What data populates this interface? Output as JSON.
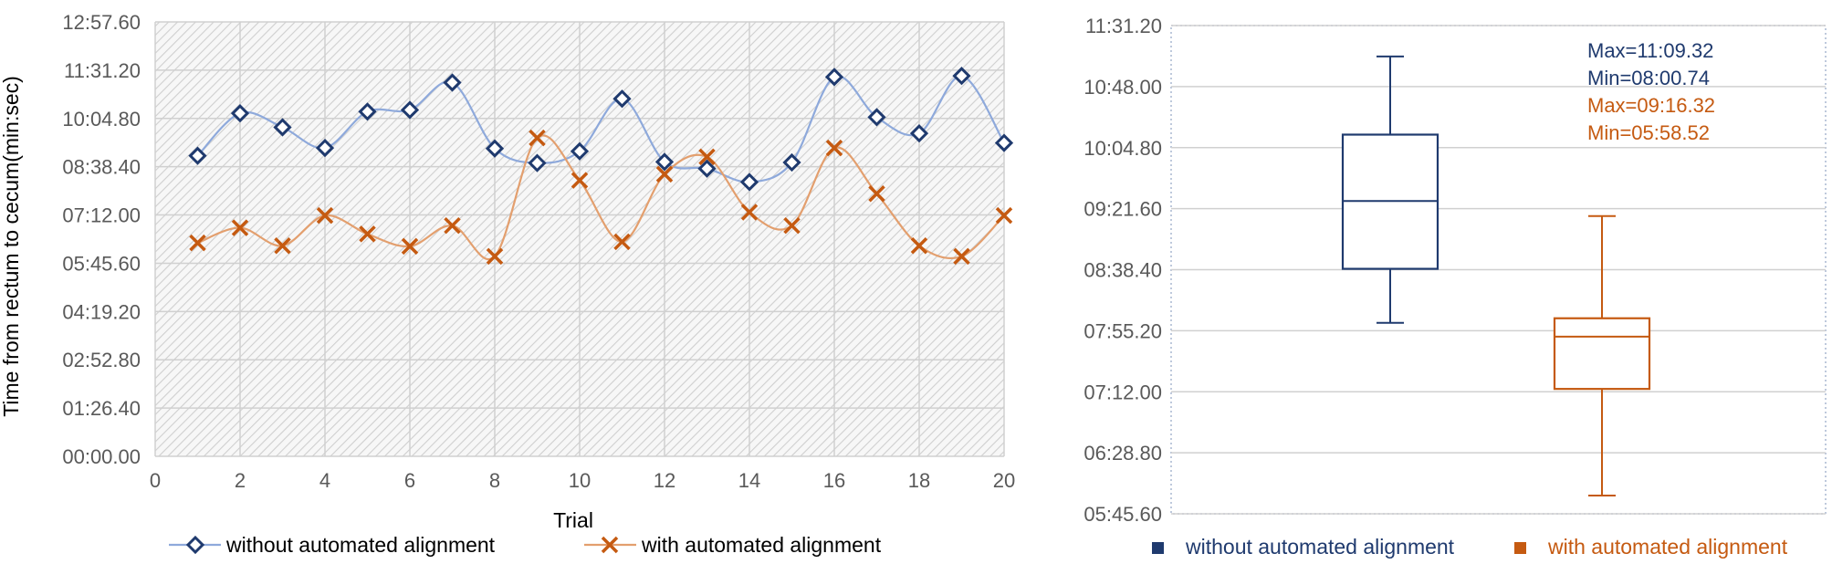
{
  "colors": {
    "without": "#1F3A6E",
    "without_line": "#8EA9DB",
    "with": "#C55A11",
    "with_line": "#E39F6E",
    "axis_text": "#595959",
    "grid": "#D0D0D0"
  },
  "chart_data": [
    {
      "type": "line",
      "xlabel": "Trial",
      "ylabel": "Time from rectum to cecum(min:sec)",
      "xlim": [
        0,
        20
      ],
      "x_ticks": [
        "0",
        "2",
        "4",
        "6",
        "8",
        "10",
        "12",
        "14",
        "16",
        "18",
        "20"
      ],
      "ylim_seconds": [
        0,
        777.6
      ],
      "y_ticks": [
        "00:00.00",
        "01:26.40",
        "02:52.80",
        "04:19.20",
        "05:45.60",
        "07:12.00",
        "08:38.40",
        "10:04.80",
        "11:31.20",
        "12:57.60"
      ],
      "legend_position": "bottom",
      "x": [
        1,
        2,
        3,
        4,
        5,
        6,
        7,
        8,
        9,
        10,
        11,
        12,
        13,
        14,
        15,
        16,
        17,
        18,
        19,
        20
      ],
      "series": [
        {
          "name": "without automated alignment",
          "marker": "diamond",
          "smooth": true,
          "values_seconds": [
            538,
            614,
            589,
            552,
            617,
            620,
            669,
            551,
            525,
            546,
            640,
            527,
            515,
            491,
            526,
            679,
            607,
            578,
            681,
            561
          ]
        },
        {
          "name": "with automated alignment",
          "marker": "x",
          "smooth": true,
          "values_seconds": [
            382,
            409,
            377,
            431,
            398,
            376,
            413,
            358,
            570,
            494,
            384,
            505,
            536,
            437,
            413,
            552,
            470,
            377,
            358,
            431
          ]
        }
      ]
    },
    {
      "type": "box",
      "ylim_seconds": [
        345.6,
        691.2
      ],
      "y_ticks": [
        "05:45.60",
        "06:28.80",
        "07:12.00",
        "07:55.20",
        "08:38.40",
        "09:21.60",
        "10:04.80",
        "10:48.00",
        "11:31.20"
      ],
      "legend_position": "bottom",
      "series": [
        {
          "name": "without automated alignment",
          "min": 480.74,
          "q1": 519,
          "median": 567,
          "q3": 614,
          "max": 669.32
        },
        {
          "name": "with automated alignment",
          "min": 358.52,
          "q1": 434,
          "median": 471,
          "q3": 484,
          "max": 556.32
        }
      ],
      "annotations": [
        {
          "text": "Max=11:09.32",
          "series": 0
        },
        {
          "text": "Min=08:00.74",
          "series": 0
        },
        {
          "text": "Max=09:16.32",
          "series": 1
        },
        {
          "text": "Min=05:58.52",
          "series": 1
        }
      ]
    }
  ]
}
